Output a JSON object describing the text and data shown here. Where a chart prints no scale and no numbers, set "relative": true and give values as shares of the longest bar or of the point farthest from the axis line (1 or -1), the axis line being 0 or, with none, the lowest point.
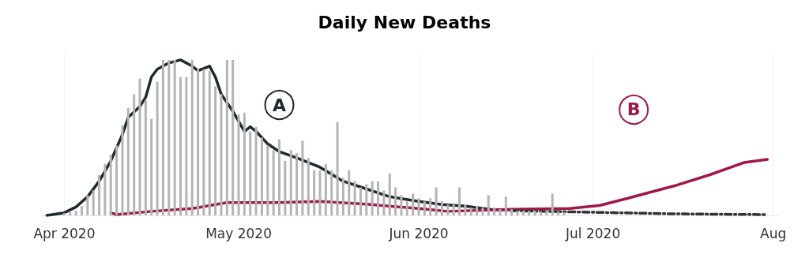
{
  "chart_data": {
    "type": "bar",
    "title": "Daily New Deaths",
    "relative": true,
    "grid": "x",
    "xlim": [
      "2020-03-28",
      "2020-08-02"
    ],
    "xticks": [
      {
        "value": "2020-04-01",
        "label": "Apr 2020"
      },
      {
        "value": "2020-05-01",
        "label": "May 2020"
      },
      {
        "value": "2020-06-01",
        "label": "Jun 2020"
      },
      {
        "value": "2020-07-01",
        "label": "Jul 2020"
      },
      {
        "value": "2020-08-01",
        "label": "Aug"
      }
    ],
    "annotations": [
      {
        "text": "A",
        "x": "2020-05-08",
        "y": 0.71
      },
      {
        "text": "B",
        "x": "2020-07-08",
        "y": 0.68
      }
    ],
    "series": [
      {
        "color": "#b4b4b4",
        "x": [
          "2020-04-01",
          "2020-04-02",
          "2020-04-03",
          "2020-04-04",
          "2020-04-05",
          "2020-04-06",
          "2020-04-07",
          "2020-04-08",
          "2020-04-09",
          "2020-04-10",
          "2020-04-11",
          "2020-04-12",
          "2020-04-13",
          "2020-04-14",
          "2020-04-15",
          "2020-04-16",
          "2020-04-17",
          "2020-04-18",
          "2020-04-19",
          "2020-04-20",
          "2020-04-21",
          "2020-04-22",
          "2020-04-23",
          "2020-04-24",
          "2020-04-25",
          "2020-04-26",
          "2020-04-27",
          "2020-04-28",
          "2020-04-29",
          "2020-04-30",
          "2020-05-01",
          "2020-05-02",
          "2020-05-03",
          "2020-05-04",
          "2020-05-05",
          "2020-05-06",
          "2020-05-07",
          "2020-05-08",
          "2020-05-09",
          "2020-05-10",
          "2020-05-11",
          "2020-05-12",
          "2020-05-13",
          "2020-05-14",
          "2020-05-15",
          "2020-05-16",
          "2020-05-17",
          "2020-05-18",
          "2020-05-19",
          "2020-05-20",
          "2020-05-21",
          "2020-05-22",
          "2020-05-23",
          "2020-05-24",
          "2020-05-25",
          "2020-05-26",
          "2020-05-27",
          "2020-05-28",
          "2020-05-29",
          "2020-05-30",
          "2020-05-31",
          "2020-06-01",
          "2020-06-02",
          "2020-06-03",
          "2020-06-04",
          "2020-06-05",
          "2020-06-06",
          "2020-06-07",
          "2020-06-08",
          "2020-06-09",
          "2020-06-10",
          "2020-06-11",
          "2020-06-12",
          "2020-06-13",
          "2020-06-14",
          "2020-06-15",
          "2020-06-16",
          "2020-06-17",
          "2020-06-18",
          "2020-06-19",
          "2020-06-20",
          "2020-06-21",
          "2020-06-22",
          "2020-06-23",
          "2020-06-24",
          "2020-06-25",
          "2020-06-26"
        ],
        "values": [
          0.015,
          0.02,
          0.03,
          0.06,
          0.13,
          0.16,
          0.26,
          0.33,
          0.39,
          0.45,
          0.58,
          0.69,
          0.78,
          0.88,
          0.74,
          0.62,
          0.86,
          1.0,
          1.0,
          1.0,
          0.89,
          0.89,
          1.0,
          0.94,
          0.94,
          0.93,
          0.83,
          0.78,
          1.0,
          1.0,
          0.65,
          0.66,
          0.54,
          0.57,
          0.5,
          0.45,
          0.42,
          0.49,
          0.35,
          0.42,
          0.4,
          0.48,
          0.37,
          0.29,
          0.29,
          0.33,
          0.29,
          0.6,
          0.24,
          0.29,
          0.22,
          0.18,
          0.2,
          0.22,
          0.22,
          0.16,
          0.27,
          0.18,
          0.13,
          0.09,
          0.14,
          0.11,
          0.09,
          0.11,
          0.18,
          0.09,
          0.07,
          0.07,
          0.18,
          0.07,
          0.05,
          0.06,
          0.05,
          0.13,
          0.05,
          0.04,
          0.12,
          0.04,
          0.03,
          0.03,
          0.03,
          0.03,
          0.025,
          0.03,
          0.14,
          0.025,
          0.02
        ]
      },
      {
        "type": "line",
        "color": "#1f2a2e",
        "line_style": "solid",
        "x": [
          "2020-03-29",
          "2020-04-01",
          "2020-04-03",
          "2020-04-05",
          "2020-04-07",
          "2020-04-09",
          "2020-04-11",
          "2020-04-12",
          "2020-04-14",
          "2020-04-15",
          "2020-04-16",
          "2020-04-17",
          "2020-04-19",
          "2020-04-21",
          "2020-04-23",
          "2020-04-24",
          "2020-04-26",
          "2020-04-27",
          "2020-04-28",
          "2020-04-30",
          "2020-05-02",
          "2020-05-03",
          "2020-05-04",
          "2020-05-06",
          "2020-05-08",
          "2020-05-11",
          "2020-05-15",
          "2020-05-19",
          "2020-05-23",
          "2020-05-27",
          "2020-06-01",
          "2020-06-05",
          "2020-06-09",
          "2020-06-14",
          "2020-06-17"
        ],
        "values": [
          0,
          0.017,
          0.054,
          0.12,
          0.22,
          0.35,
          0.52,
          0.63,
          0.7,
          0.76,
          0.89,
          0.94,
          0.98,
          1.0,
          0.96,
          0.93,
          0.96,
          0.89,
          0.78,
          0.67,
          0.54,
          0.57,
          0.54,
          0.46,
          0.41,
          0.37,
          0.31,
          0.22,
          0.17,
          0.12,
          0.09,
          0.07,
          0.06,
          0.035,
          0.035
        ]
      },
      {
        "type": "line",
        "color": "#a0174a",
        "line_style": "solid",
        "x": [
          "2020-04-09",
          "2020-04-10",
          "2020-04-16",
          "2020-04-23",
          "2020-04-26",
          "2020-04-29",
          "2020-05-08",
          "2020-05-15",
          "2020-05-23",
          "2020-06-01",
          "2020-06-06",
          "2020-06-17",
          "2020-06-27",
          "2020-07-02",
          "2020-07-07",
          "2020-07-15",
          "2020-07-21",
          "2020-07-24",
          "2020-07-27",
          "2020-07-31"
        ],
        "values": [
          0.017,
          0.005,
          0.026,
          0.044,
          0.063,
          0.082,
          0.082,
          0.09,
          0.072,
          0.044,
          0.026,
          0.039,
          0.044,
          0.063,
          0.11,
          0.19,
          0.26,
          0.3,
          0.34,
          0.36
        ]
      },
      {
        "type": "line",
        "color": "#333333",
        "line_style": "dashed",
        "x": [
          "2020-06-17",
          "2020-07-01",
          "2020-07-15",
          "2020-07-31"
        ],
        "values": [
          0.03,
          0.02,
          0.01,
          0.005
        ]
      }
    ]
  }
}
